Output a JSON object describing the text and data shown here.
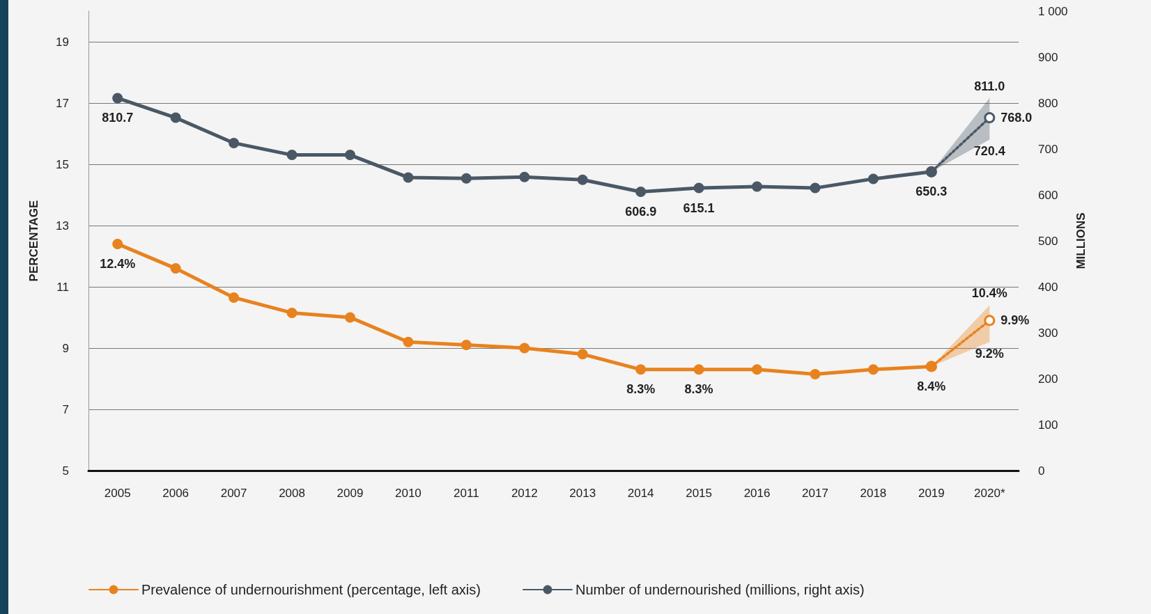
{
  "chart_data": {
    "type": "line",
    "categories": [
      "2005",
      "2006",
      "2007",
      "2008",
      "2009",
      "2010",
      "2011",
      "2012",
      "2013",
      "2014",
      "2015",
      "2016",
      "2017",
      "2018",
      "2019",
      "2020*"
    ],
    "ylabel": "PERCENTAGE",
    "y2label": "MILLIONS",
    "ylim": [
      5,
      20
    ],
    "yticks": [
      5,
      7,
      9,
      11,
      13,
      15,
      17,
      19
    ],
    "y2lim": [
      0,
      1000
    ],
    "y2ticks": [
      0,
      100,
      200,
      300,
      400,
      500,
      600,
      700,
      800,
      900,
      {
        "value": 1000,
        "label": "1 000"
      }
    ],
    "grid": "y",
    "legend": "bottom",
    "marker": "circle",
    "line_style": "solid",
    "series": [
      {
        "name": "Prevalence of undernourishment (percentage, left axis)",
        "color": "#e8821e",
        "values": [
          12.4,
          11.6,
          10.65,
          10.15,
          10.0,
          9.2,
          9.1,
          9.0,
          8.8,
          8.3,
          8.3,
          8.3,
          8.15,
          8.3,
          8.4,
          null
        ],
        "value_labels": [
          "12.4%",
          null,
          null,
          null,
          null,
          null,
          null,
          null,
          null,
          "8.3%",
          "8.3%",
          null,
          null,
          null,
          "8.4%",
          null
        ]
      },
      {
        "color": "#e8821e",
        "line_style": "dotted",
        "values": [
          null,
          null,
          null,
          null,
          null,
          null,
          null,
          null,
          null,
          null,
          null,
          null,
          null,
          null,
          8.4,
          9.9
        ],
        "lower": [
          null,
          null,
          null,
          null,
          null,
          null,
          null,
          null,
          null,
          null,
          null,
          null,
          null,
          null,
          8.4,
          9.2
        ],
        "upper": [
          null,
          null,
          null,
          null,
          null,
          null,
          null,
          null,
          null,
          null,
          null,
          null,
          null,
          null,
          8.4,
          10.4
        ],
        "value_labels": [
          null,
          null,
          null,
          null,
          null,
          null,
          null,
          null,
          null,
          null,
          null,
          null,
          null,
          null,
          null,
          "9.9%"
        ]
      },
      {
        "name": "Number of undernourished (millions, right axis)",
        "color": "#4a5866",
        "axis": "y2",
        "values": [
          810.7,
          768,
          713,
          687,
          687,
          638,
          636,
          639,
          633,
          606.9,
          615.1,
          618,
          615,
          635,
          650.3,
          null
        ],
        "value_labels": [
          "810.7",
          null,
          null,
          null,
          null,
          null,
          null,
          null,
          null,
          "606.9",
          "615.1",
          null,
          null,
          null,
          "650.3",
          null
        ]
      },
      {
        "color": "#4a5866",
        "axis": "y2",
        "line_style": "dotted",
        "values": [
          null,
          null,
          null,
          null,
          null,
          null,
          null,
          null,
          null,
          null,
          null,
          null,
          null,
          null,
          650.3,
          768.0
        ],
        "lower": [
          null,
          null,
          null,
          null,
          null,
          null,
          null,
          null,
          null,
          null,
          null,
          null,
          null,
          null,
          650.3,
          720.4
        ],
        "upper": [
          null,
          null,
          null,
          null,
          null,
          null,
          null,
          null,
          null,
          null,
          null,
          null,
          null,
          null,
          650.3,
          811.0
        ],
        "value_labels": [
          null,
          null,
          null,
          null,
          null,
          null,
          null,
          null,
          null,
          null,
          null,
          null,
          null,
          null,
          null,
          "768.0"
        ]
      }
    ],
    "annotations": [
      {
        "text": "10.4%",
        "x": "2020*",
        "y": 10.4
      },
      {
        "text": "9.2%",
        "x": "2020*",
        "y": 9.2
      },
      {
        "text": "811.0",
        "x": "2020*",
        "y": 17.17
      },
      {
        "text": "720.4",
        "x": "2020*",
        "y": 15.81
      }
    ]
  }
}
